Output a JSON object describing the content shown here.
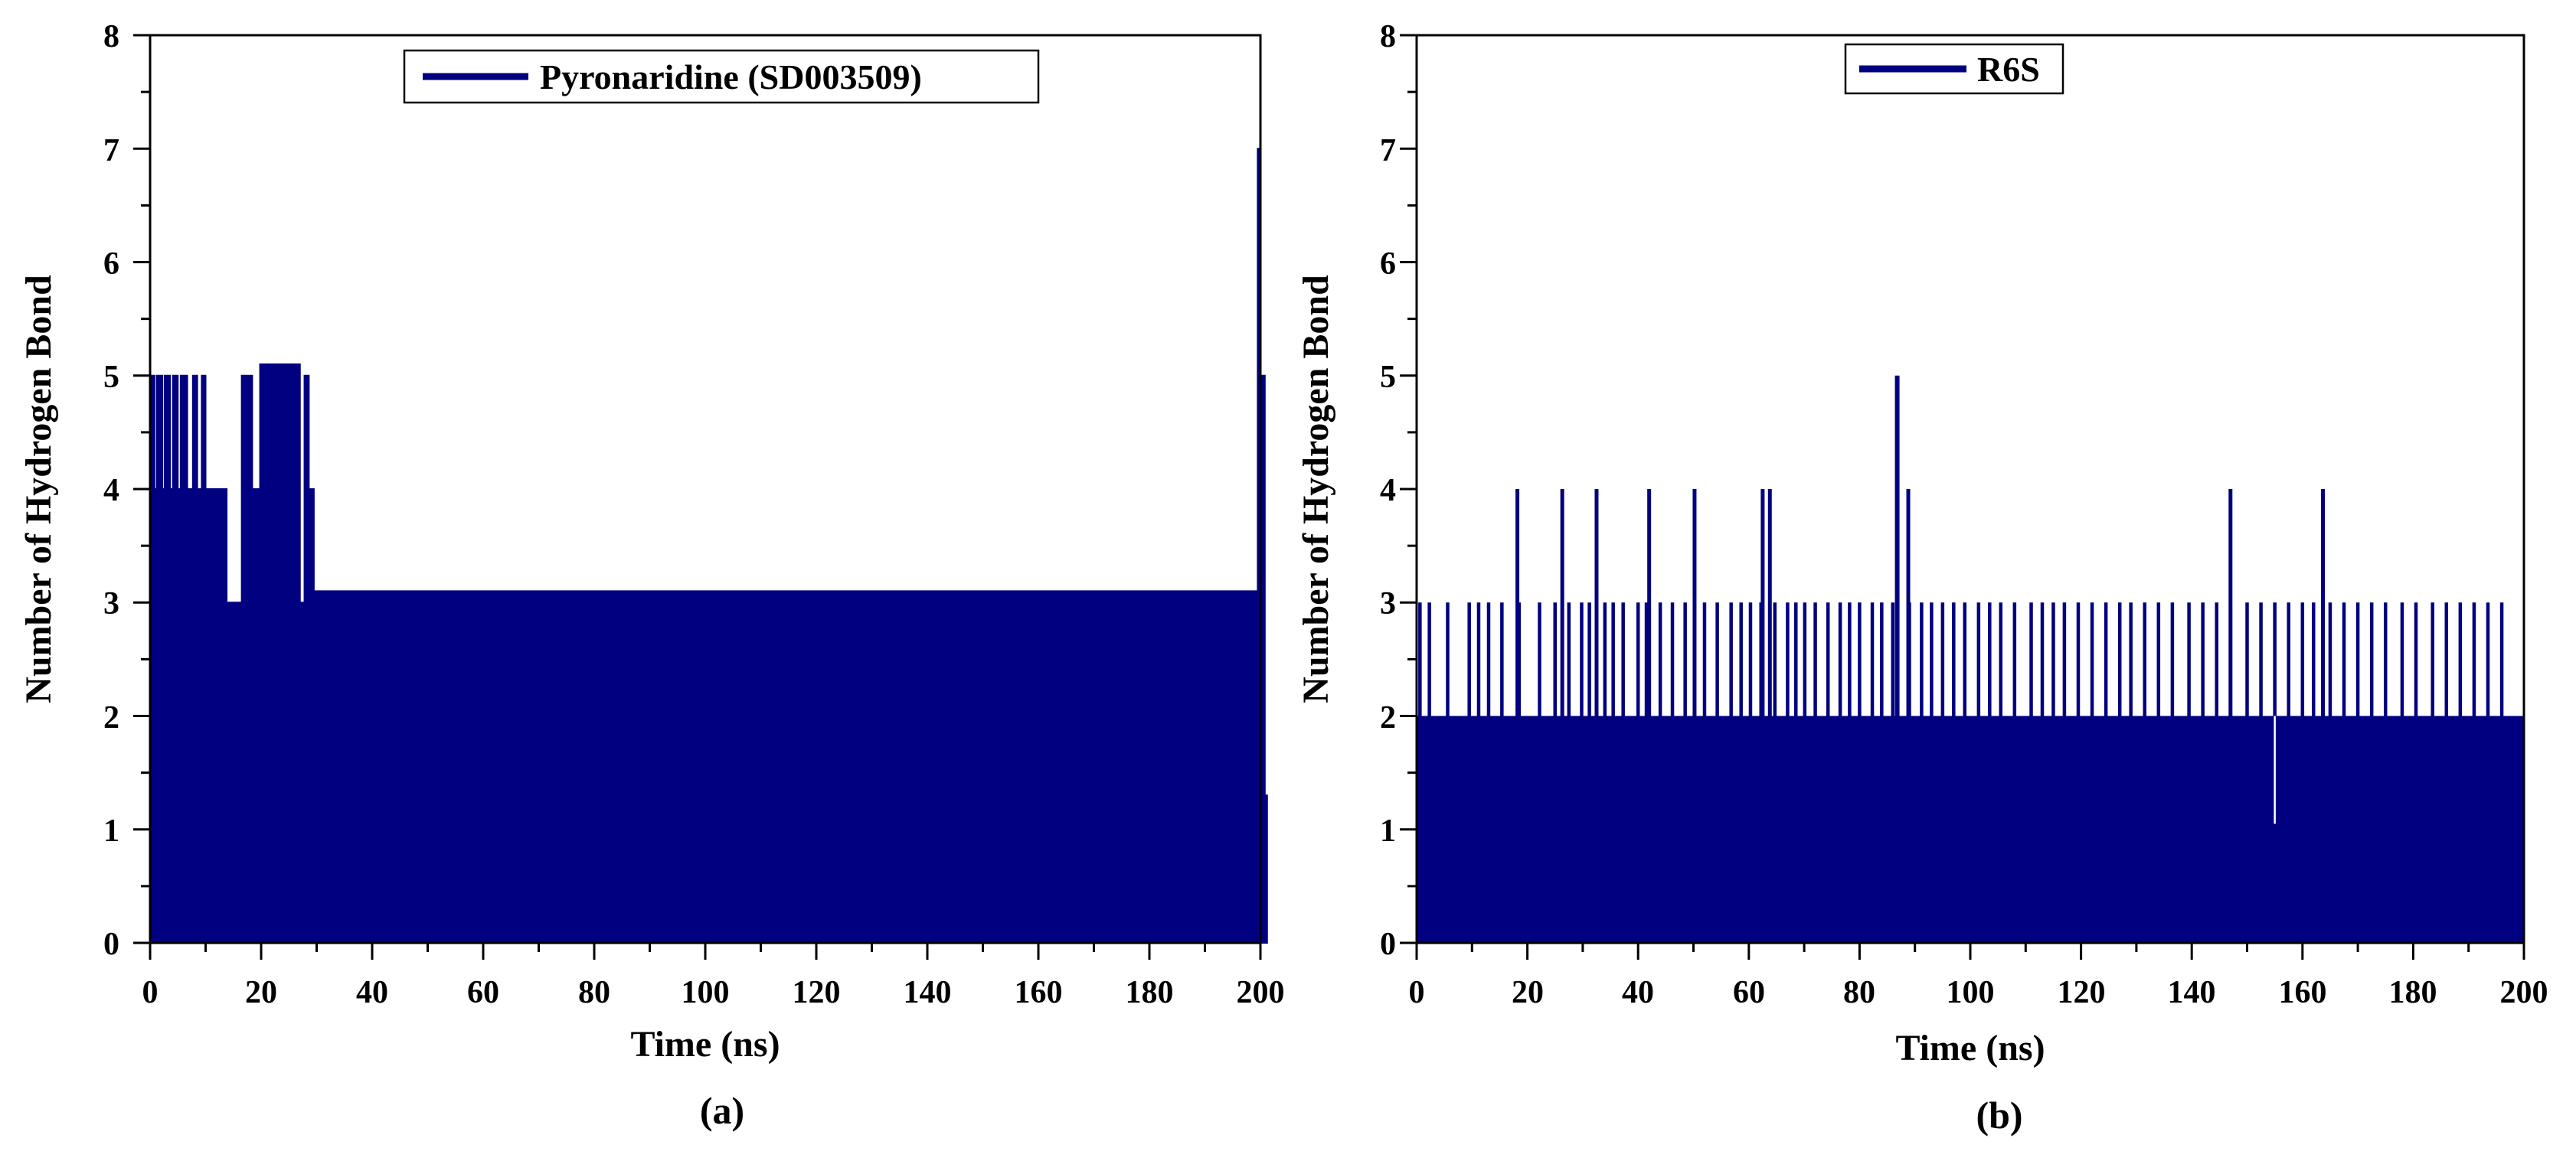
{
  "series_color": "#000080",
  "chart_data": [
    {
      "type": "line",
      "panel_label": "(a)",
      "xlabel": "Time (ns)",
      "ylabel": "Number of Hydrogen Bond",
      "xlim": [
        0,
        200
      ],
      "ylim": [
        0,
        8
      ],
      "xticks": [
        "0",
        "20",
        "40",
        "60",
        "80",
        "100",
        "120",
        "140",
        "160",
        "180",
        "200"
      ],
      "yticks": [
        "0",
        "1",
        "2",
        "3",
        "4",
        "5",
        "6",
        "7",
        "8"
      ],
      "grid": false,
      "legend": {
        "position": "top-center",
        "entries": [
          "Pyronaridine (SD003509)"
        ]
      },
      "series": [
        {
          "name": "Pyronaridine (SD003509)",
          "upper_envelope": [
            {
              "x": 0,
              "y": 5
            },
            {
              "x": 0.8,
              "y": 4
            },
            {
              "x": 1.2,
              "y": 5
            },
            {
              "x": 2.2,
              "y": 4
            },
            {
              "x": 2.6,
              "y": 5
            },
            {
              "x": 3.6,
              "y": 4
            },
            {
              "x": 4.1,
              "y": 5
            },
            {
              "x": 5.0,
              "y": 4
            },
            {
              "x": 5.5,
              "y": 5
            },
            {
              "x": 6.7,
              "y": 4
            },
            {
              "x": 7.7,
              "y": 5
            },
            {
              "x": 8.5,
              "y": 4
            },
            {
              "x": 9.3,
              "y": 5
            },
            {
              "x": 10.0,
              "y": 4
            },
            {
              "x": 13.8,
              "y": 3
            },
            {
              "x": 16.5,
              "y": 5
            },
            {
              "x": 18.4,
              "y": 4
            },
            {
              "x": 19.8,
              "y": 5.1
            },
            {
              "x": 27.0,
              "y": 3
            },
            {
              "x": 27.8,
              "y": 5
            },
            {
              "x": 28.6,
              "y": 4
            },
            {
              "x": 29.5,
              "y": 3.1
            },
            {
              "x": 199.0,
              "y": 3.1
            },
            {
              "x": 199.5,
              "y": 7
            },
            {
              "x": 200.0,
              "y": 5
            },
            {
              "x": 200.8,
              "y": 1.3
            }
          ],
          "lower_fill": 0
        }
      ]
    },
    {
      "type": "line",
      "panel_label": "(b)",
      "xlabel": "Time (ns)",
      "ylabel": "Number of Hydrogen Bond",
      "xlim": [
        0,
        200
      ],
      "ylim": [
        0,
        8
      ],
      "xticks": [
        "0",
        "20",
        "40",
        "60",
        "80",
        "100",
        "120",
        "140",
        "160",
        "180",
        "200"
      ],
      "yticks": [
        "0",
        "1",
        "2",
        "3",
        "4",
        "5",
        "6",
        "7",
        "8"
      ],
      "grid": false,
      "legend": {
        "position": "top-center",
        "entries": [
          "R6S"
        ]
      },
      "series": [
        {
          "name": "R6S",
          "baseline": 2,
          "spikes_to_3": [
            0.6,
            2.3,
            5.6,
            9.5,
            11.2,
            13.0,
            15.4,
            18.5,
            22.2,
            25.0,
            27.5,
            29.8,
            31.2,
            34.0,
            35.5,
            37.3,
            40.0,
            41.5,
            44.0,
            46.2,
            48.5,
            52.0,
            54.3,
            56.8,
            58.6,
            60.3,
            62.2,
            64.7,
            67.0,
            68.5,
            70.1,
            72.0,
            74.3,
            76.5,
            78.2,
            80.0,
            82.3,
            84.0,
            86.0,
            89.0,
            91.2,
            93.0,
            95.0,
            97.0,
            99.0,
            101.5,
            103.5,
            105.5,
            108.0,
            111.0,
            113.0,
            115.0,
            117.0,
            119.5,
            122.0,
            124.5,
            127.0,
            129.0,
            131.5,
            134.0,
            136.5,
            139.5,
            142.0,
            144.5,
            147.0,
            150.0,
            152.5,
            155.0,
            157.5,
            160.0,
            162.0,
            165.0,
            167.5,
            170.0,
            172.5,
            175.0,
            178.0,
            180.5,
            183.5,
            186.0,
            188.5,
            191.0,
            193.5,
            196.0
          ],
          "spikes_to_4": [
            18.2,
            26.3,
            32.5,
            42.0,
            50.2,
            62.5,
            63.8,
            88.8,
            147.0,
            163.7
          ],
          "spikes_to_5": [
            86.8
          ],
          "dips": [
            {
              "x": 155.0,
              "y": 1.05
            }
          ]
        }
      ]
    }
  ]
}
